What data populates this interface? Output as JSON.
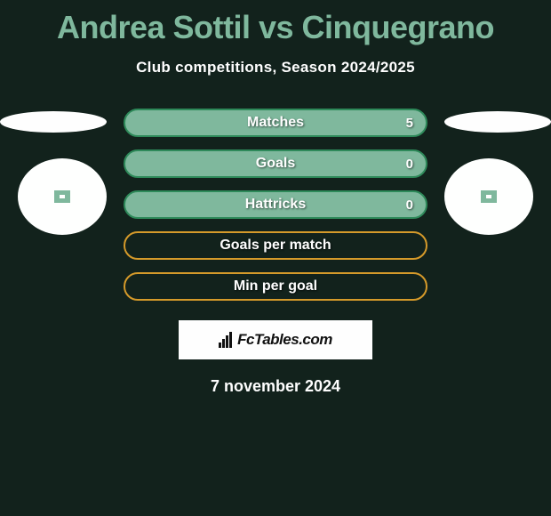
{
  "title": "Andrea Sottil vs Cinquegrano",
  "subtitle": "Club competitions, Season 2024/2025",
  "date": "7 november 2024",
  "badge_text": "FcTables.com",
  "colors": {
    "background": "#12221c",
    "title": "#7fb89d",
    "text": "#fefefe",
    "row_fill": "#7fb89d",
    "row_border_filled": "#2e8a5a",
    "row_border_empty": "#d59a2a",
    "badge_bg": "#fefefe"
  },
  "stats": [
    {
      "label": "Matches",
      "value": "5",
      "fill": true
    },
    {
      "label": "Goals",
      "value": "0",
      "fill": true
    },
    {
      "label": "Hattricks",
      "value": "0",
      "fill": true
    },
    {
      "label": "Goals per match",
      "value": "",
      "fill": false
    },
    {
      "label": "Min per goal",
      "value": "",
      "fill": false
    }
  ]
}
